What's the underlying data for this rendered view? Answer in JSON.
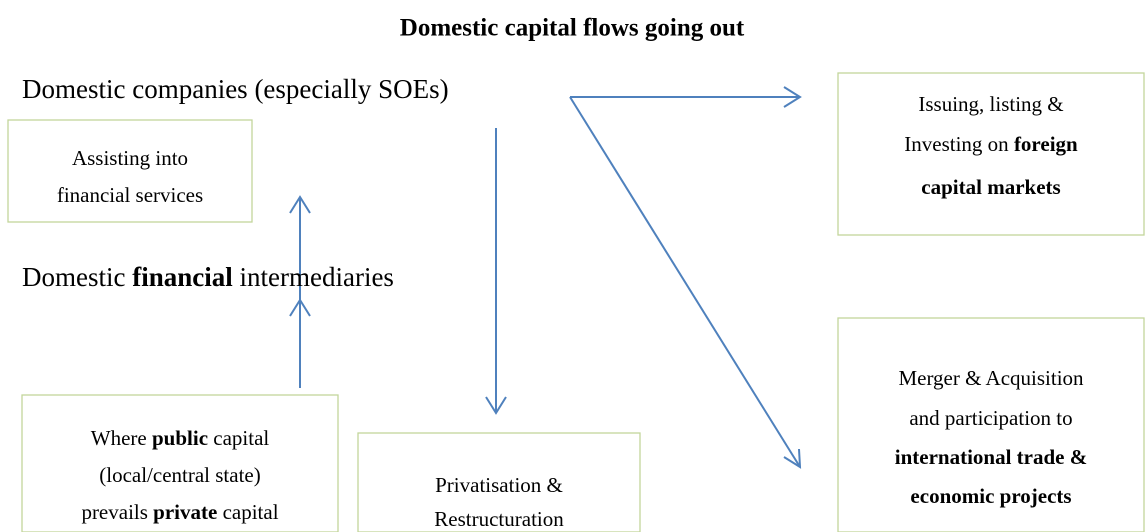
{
  "title": "Domestic capital flows going out",
  "labels": [
    {
      "lines": [
        [
          {
            "text": "Domestic companies (especially SOEs)"
          }
        ]
      ]
    },
    {
      "lines": [
        [
          {
            "text": "Domestic "
          },
          {
            "text": "financial",
            "bold": true
          },
          {
            "text": " intermediaries"
          }
        ]
      ]
    }
  ],
  "boxes": [
    {
      "lines": [
        [
          {
            "text": "Assisting into"
          }
        ],
        [
          {
            "text": "financial services"
          }
        ]
      ]
    },
    {
      "lines": [
        [
          {
            "text": "Issuing, listing &"
          }
        ],
        [
          {
            "text": "Investing on "
          },
          {
            "text": "foreign",
            "bold": true
          }
        ],
        [
          {
            "text": "capital markets",
            "bold": true
          }
        ]
      ]
    },
    {
      "lines": [
        [
          {
            "text": "Where "
          },
          {
            "text": "public",
            "bold": true
          },
          {
            "text": " capital"
          }
        ],
        [
          {
            "text": "(local/central state)"
          }
        ],
        [
          {
            "text": "prevails "
          },
          {
            "text": "private",
            "bold": true
          },
          {
            "text": " capital"
          }
        ]
      ]
    },
    {
      "lines": [
        [
          {
            "text": "Privatisation &"
          }
        ],
        [
          {
            "text": "Restructuration"
          }
        ]
      ]
    },
    {
      "lines": [
        [
          {
            "text": "Merger & Acquisition"
          }
        ],
        [
          {
            "text": "and participation to"
          }
        ],
        [
          {
            "text": "international trade &",
            "bold": true
          }
        ],
        [
          {
            "text": "economic projects",
            "bold": true
          }
        ]
      ]
    }
  ]
}
